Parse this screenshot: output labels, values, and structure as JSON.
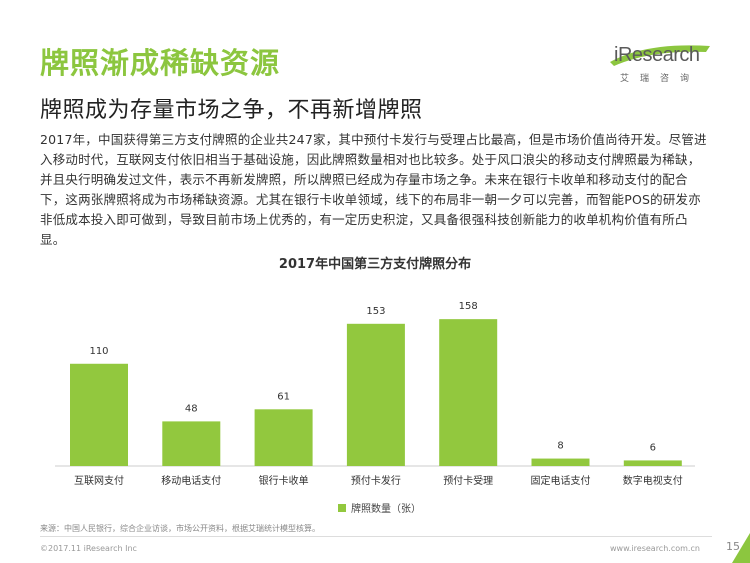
{
  "title": "牌照渐成稀缺资源",
  "subtitle": "牌照成为存量市场之争，不再新增牌照",
  "logo": {
    "brand": "iResearch",
    "tagline": "艾瑞咨询"
  },
  "paragraph": "2017年，中国获得第三方支付牌照的企业共247家，其中预付卡发行与受理占比最高，但是市场价值尚待开发。尽管进入移动时代，互联网支付依旧相当于基础设施，因此牌照数量相对也比较多。处于风口浪尖的移动支付牌照最为稀缺，并且央行明确发过文件，表示不再新发牌照，所以牌照已经成为存量市场之争。未来在银行卡收单和移动支付的配合下，这两张牌照将成为市场稀缺资源。尤其在银行卡收单领域，线下的布局非一朝一夕可以完善，而智能POS的研发亦非低成本投入即可做到，导致目前市场上优秀的，有一定历史积淀，又具备很强科技创新能力的收单机构价值有所凸显。",
  "chart_data": {
    "type": "bar",
    "title": "2017年中国第三方支付牌照分布",
    "categories": [
      "互联网支付",
      "移动电话支付",
      "银行卡收单",
      "预付卡发行",
      "预付卡受理",
      "固定电话支付",
      "数字电视支付"
    ],
    "series": [
      {
        "name": "牌照数量（张）",
        "values": [
          110,
          48,
          61,
          153,
          158,
          8,
          6
        ]
      }
    ],
    "ylim": [
      0,
      170
    ],
    "grid": false,
    "legend": "bottom-center",
    "color": "#92c83e"
  },
  "footer": {
    "source": "来源：中国人民银行，综合企业访谈，市场公开资料，根据艾瑞统计模型核算。",
    "copyright": "©2017.11 iResearch Inc",
    "website": "www.iresearch.com.cn",
    "page": "15"
  },
  "colors": {
    "accent": "#8cc63f",
    "bar": "#92c83e"
  }
}
